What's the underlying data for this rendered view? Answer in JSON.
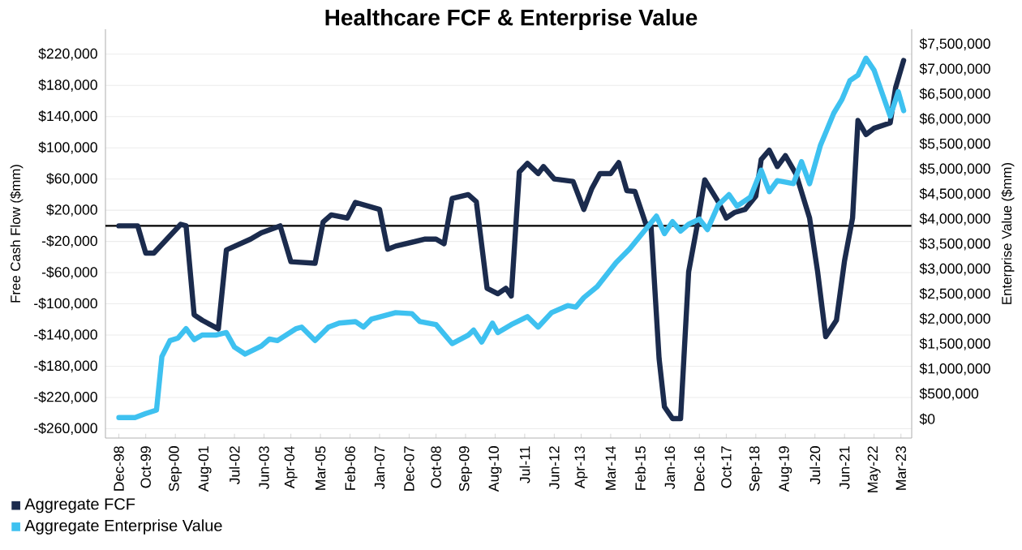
{
  "chart_data": {
    "type": "line",
    "title": "Healthcare FCF & Enterprise Value",
    "ylabel": "Free Cash Flow ($mm)",
    "y2label": "Enterprise Value ($mm)",
    "xlim": [
      "1998-07",
      "2023-07"
    ],
    "xticks": [
      {
        "value": "1998-12",
        "label": "Dec-98"
      },
      {
        "value": "1999-10",
        "label": "Oct-99"
      },
      {
        "value": "2000-09",
        "label": "Sep-00"
      },
      {
        "value": "2001-08",
        "label": "Aug-01"
      },
      {
        "value": "2002-07",
        "label": "Jul-02"
      },
      {
        "value": "2003-06",
        "label": "Jun-03"
      },
      {
        "value": "2004-04",
        "label": "Apr-04"
      },
      {
        "value": "2005-03",
        "label": "Mar-05"
      },
      {
        "value": "2006-02",
        "label": "Feb-06"
      },
      {
        "value": "2007-01",
        "label": "Jan-07"
      },
      {
        "value": "2007-12",
        "label": "Dec-07"
      },
      {
        "value": "2008-10",
        "label": "Oct-08"
      },
      {
        "value": "2009-09",
        "label": "Sep-09"
      },
      {
        "value": "2010-08",
        "label": "Aug-10"
      },
      {
        "value": "2011-07",
        "label": "Jul-11"
      },
      {
        "value": "2012-06",
        "label": "Jun-12"
      },
      {
        "value": "2013-04",
        "label": "Apr-13"
      },
      {
        "value": "2014-03",
        "label": "Mar-14"
      },
      {
        "value": "2015-02",
        "label": "Feb-15"
      },
      {
        "value": "2016-01",
        "label": "Jan-16"
      },
      {
        "value": "2016-12",
        "label": "Dec-16"
      },
      {
        "value": "2017-10",
        "label": "Oct-17"
      },
      {
        "value": "2018-09",
        "label": "Sep-18"
      },
      {
        "value": "2019-08",
        "label": "Aug-19"
      },
      {
        "value": "2020-07",
        "label": "Jul-20"
      },
      {
        "value": "2021-06",
        "label": "Jun-21"
      },
      {
        "value": "2022-05",
        "label": "May-22"
      },
      {
        "value": "2023-03",
        "label": "Mar-23"
      }
    ],
    "ylim": [
      -272000,
      252000
    ],
    "yticks": [
      {
        "value": -260000,
        "label": "-$260,000"
      },
      {
        "value": -220000,
        "label": "-$220,000"
      },
      {
        "value": -180000,
        "label": "-$180,000"
      },
      {
        "value": -140000,
        "label": "-$140,000"
      },
      {
        "value": -100000,
        "label": "-$100,000"
      },
      {
        "value": -60000,
        "label": "-$60,000"
      },
      {
        "value": -20000,
        "label": "-$20,000"
      },
      {
        "value": 20000,
        "label": "$20,000"
      },
      {
        "value": 60000,
        "label": "$60,000"
      },
      {
        "value": 100000,
        "label": "$100,000"
      },
      {
        "value": 140000,
        "label": "$140,000"
      },
      {
        "value": 180000,
        "label": "$180,000"
      },
      {
        "value": 220000,
        "label": "$220,000"
      }
    ],
    "y2lim": [
      -380000,
      7800000
    ],
    "y2ticks": [
      {
        "value": 0,
        "label": "$0"
      },
      {
        "value": 500000,
        "label": "$500,000"
      },
      {
        "value": 1000000,
        "label": "$1,000,000"
      },
      {
        "value": 1500000,
        "label": "$1,500,000"
      },
      {
        "value": 2000000,
        "label": "$2,000,000"
      },
      {
        "value": 2500000,
        "label": "$2,500,000"
      },
      {
        "value": 3000000,
        "label": "$3,000,000"
      },
      {
        "value": 3500000,
        "label": "$3,500,000"
      },
      {
        "value": 4000000,
        "label": "$4,000,000"
      },
      {
        "value": 4500000,
        "label": "$4,500,000"
      },
      {
        "value": 5000000,
        "label": "$5,000,000"
      },
      {
        "value": 5500000,
        "label": "$5,500,000"
      },
      {
        "value": 6000000,
        "label": "$6,000,000"
      },
      {
        "value": 6500000,
        "label": "$6,500,000"
      },
      {
        "value": 7000000,
        "label": "$7,000,000"
      },
      {
        "value": 7500000,
        "label": "$7,500,000"
      }
    ],
    "grid": "y",
    "legend": "bottom left",
    "ref_lines": [
      {
        "axis": "y",
        "value": 0,
        "color": "#000000"
      }
    ],
    "series": [
      {
        "name": "Aggregate FCF",
        "color": "#1b2b4d",
        "x": [
          "1998-12",
          "1999-07",
          "1999-10",
          "2000-01",
          "2000-11",
          "2001-01",
          "2001-04",
          "2001-07",
          "2002-01",
          "2002-04",
          "2003-01",
          "2003-05",
          "2003-12",
          "2004-04",
          "2005-01",
          "2005-04",
          "2005-07",
          "2006-01",
          "2006-04",
          "2007-01",
          "2007-04",
          "2007-07",
          "2008-06",
          "2008-10",
          "2009-01",
          "2009-04",
          "2009-10",
          "2010-01",
          "2010-05",
          "2010-09",
          "2010-12",
          "2011-02",
          "2011-05",
          "2011-08",
          "2011-12",
          "2012-02",
          "2012-06",
          "2013-01",
          "2013-05",
          "2013-08",
          "2013-11",
          "2014-03",
          "2014-06",
          "2014-09",
          "2014-12",
          "2015-04",
          "2015-06",
          "2015-09",
          "2015-11",
          "2016-02",
          "2016-05",
          "2016-08",
          "2016-11",
          "2017-02",
          "2017-07",
          "2017-10",
          "2018-01",
          "2018-05",
          "2018-09",
          "2018-11",
          "2019-02",
          "2019-05",
          "2019-08",
          "2019-12",
          "2020-05",
          "2020-08",
          "2020-11",
          "2021-03",
          "2021-06",
          "2021-09",
          "2021-11",
          "2022-02",
          "2022-05",
          "2022-11",
          "2023-01",
          "2023-04"
        ],
        "values": [
          0,
          0,
          -35000,
          -35000,
          2000,
          0,
          -114000,
          -121000,
          -132000,
          -31000,
          -17000,
          -9000,
          0,
          -46000,
          -48000,
          5000,
          14000,
          10000,
          30000,
          21000,
          -30000,
          -26000,
          -17000,
          -17000,
          -23000,
          35000,
          40000,
          31000,
          -80000,
          -87000,
          -80000,
          -90000,
          69000,
          80000,
          67000,
          76000,
          60000,
          57000,
          21000,
          48000,
          67000,
          67000,
          81000,
          45000,
          44000,
          3000,
          0,
          -170000,
          -232000,
          -247000,
          -247000,
          -59000,
          -3000,
          59000,
          31000,
          10000,
          17000,
          21000,
          38000,
          85000,
          97000,
          76000,
          90000,
          66000,
          10000,
          -59000,
          -142000,
          -121000,
          -45000,
          10000,
          135000,
          117000,
          125000,
          132000,
          177000,
          212000
        ]
      },
      {
        "name": "Aggregate Enterprise Value",
        "color": "#3ec1f0",
        "axis": "y2",
        "x": [
          "1998-12",
          "1999-06",
          "1999-10",
          "2000-02",
          "2000-04",
          "2000-07",
          "2000-10",
          "2001-01",
          "2001-04",
          "2001-07",
          "2001-12",
          "2002-04",
          "2002-07",
          "2002-11",
          "2003-05",
          "2003-08",
          "2003-11",
          "2004-06",
          "2004-08",
          "2005-01",
          "2005-06",
          "2005-10",
          "2006-04",
          "2006-07",
          "2006-10",
          "2007-07",
          "2008-01",
          "2008-04",
          "2008-10",
          "2009-04",
          "2009-10",
          "2009-12",
          "2010-03",
          "2010-07",
          "2010-09",
          "2011-02",
          "2011-08",
          "2011-12",
          "2012-05",
          "2012-11",
          "2013-02",
          "2013-05",
          "2013-10",
          "2014-05",
          "2014-10",
          "2015-03",
          "2015-08",
          "2015-11",
          "2016-02",
          "2016-05",
          "2016-08",
          "2016-12",
          "2017-03",
          "2017-07",
          "2017-11",
          "2018-02",
          "2018-07",
          "2018-11",
          "2019-02",
          "2019-05",
          "2019-11",
          "2020-02",
          "2020-05",
          "2020-09",
          "2021-02",
          "2021-05",
          "2021-08",
          "2021-11",
          "2022-02",
          "2022-05",
          "2022-11",
          "2023-02",
          "2023-04"
        ],
        "values": [
          30000,
          30000,
          110000,
          180000,
          1250000,
          1570000,
          1620000,
          1810000,
          1590000,
          1680000,
          1680000,
          1730000,
          1440000,
          1300000,
          1460000,
          1600000,
          1570000,
          1810000,
          1840000,
          1570000,
          1840000,
          1920000,
          1950000,
          1840000,
          2000000,
          2130000,
          2110000,
          1950000,
          1890000,
          1510000,
          1680000,
          1780000,
          1540000,
          1920000,
          1730000,
          1890000,
          2050000,
          1840000,
          2130000,
          2270000,
          2240000,
          2430000,
          2650000,
          3130000,
          3400000,
          3730000,
          4060000,
          3710000,
          3950000,
          3760000,
          3900000,
          4000000,
          3790000,
          4280000,
          4490000,
          4260000,
          4440000,
          4980000,
          4550000,
          4770000,
          4710000,
          5150000,
          4710000,
          5470000,
          6120000,
          6390000,
          6770000,
          6880000,
          7220000,
          6980000,
          6060000,
          6550000,
          6170000
        ]
      }
    ]
  }
}
